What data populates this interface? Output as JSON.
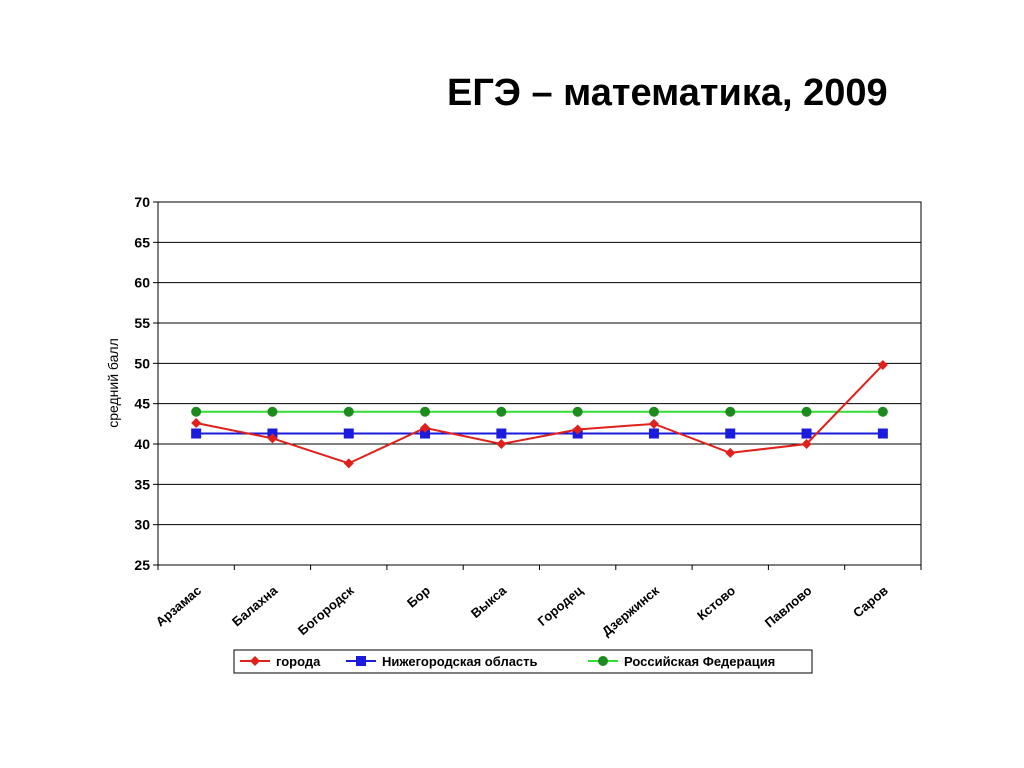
{
  "title": "ЕГЭ – математика, 2009",
  "chart_data": {
    "type": "line",
    "ylabel": "средний балл",
    "xlabel": "",
    "ylim": [
      25,
      70
    ],
    "yticks": [
      25,
      30,
      35,
      40,
      45,
      50,
      55,
      60,
      65,
      70
    ],
    "grid": "horizontal",
    "legend_position": "bottom",
    "categories": [
      "Арзамас",
      "Балахна",
      "Богородск",
      "Бор",
      "Выкса",
      "Городец",
      "Дзержинск",
      "Кстово",
      "Павлово",
      "Саров"
    ],
    "series": [
      {
        "name": "города",
        "color": "#e0201b",
        "marker": "diamond",
        "values": [
          42.6,
          40.7,
          37.6,
          42.0,
          40.0,
          41.8,
          42.5,
          38.9,
          40.0,
          49.8
        ]
      },
      {
        "name": "Нижегородская область",
        "color": "#1b1bdd",
        "marker": "square",
        "values": [
          41.3,
          41.3,
          41.3,
          41.3,
          41.3,
          41.3,
          41.3,
          41.3,
          41.3,
          41.3
        ]
      },
      {
        "name": "Российская Федерация",
        "color": "#1e8a1e",
        "line_color": "#33dd33",
        "marker": "circle",
        "values": [
          44.0,
          44.0,
          44.0,
          44.0,
          44.0,
          44.0,
          44.0,
          44.0,
          44.0,
          44.0
        ]
      }
    ]
  }
}
